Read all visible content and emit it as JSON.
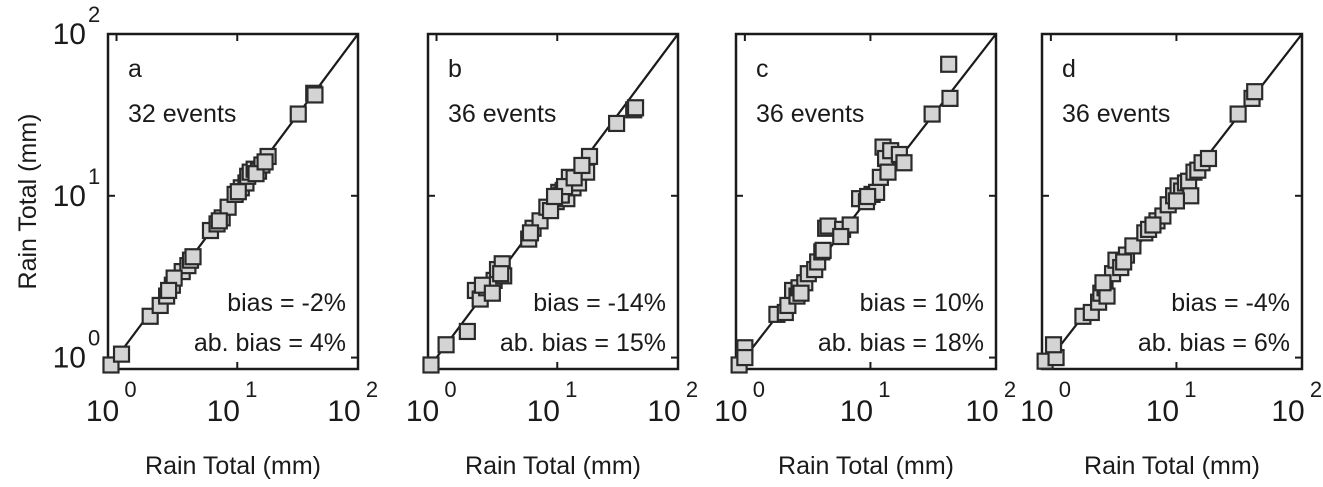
{
  "chart_data": [
    {
      "type": "scatter",
      "panel_label": "a",
      "events_text": "32 events",
      "bias_text": "bias = -2%",
      "abs_bias_text": "ab. bias = 4%",
      "xlabel": "Rain Total (mm)",
      "ylabel": "Rain Total (mm)",
      "xscale": "log",
      "yscale": "log",
      "xlim": [
        0.85,
        100
      ],
      "ylim": [
        0.85,
        100
      ],
      "reference_line": "1:1",
      "marker": "square",
      "marker_color": "#d4d4d4",
      "points": [
        [
          0.9,
          0.9
        ],
        [
          1.1,
          1.05
        ],
        [
          1.9,
          1.8
        ],
        [
          2.3,
          2.1
        ],
        [
          2.6,
          2.4
        ],
        [
          2.9,
          2.8
        ],
        [
          3.5,
          3.4
        ],
        [
          3.9,
          3.7
        ],
        [
          4.1,
          4.0
        ],
        [
          6.0,
          6.1
        ],
        [
          6.8,
          6.7
        ],
        [
          7.5,
          7.3
        ],
        [
          8.4,
          8.5
        ],
        [
          9.6,
          10.2
        ],
        [
          10.8,
          11.2
        ],
        [
          11.8,
          12.0
        ],
        [
          12.2,
          13.2
        ],
        [
          12.8,
          14.0
        ],
        [
          13.8,
          14.6
        ],
        [
          15.0,
          14.2
        ],
        [
          16.0,
          15.5
        ],
        [
          18.0,
          17.5
        ],
        [
          32.0,
          32.0
        ],
        [
          43.0,
          43.0
        ],
        [
          44.0,
          42.0
        ],
        [
          3.0,
          3.1
        ],
        [
          2.7,
          2.6
        ],
        [
          4.3,
          4.2
        ],
        [
          7.1,
          7.0
        ],
        [
          10.2,
          10.6
        ],
        [
          14.3,
          13.7
        ],
        [
          17.0,
          16.2
        ]
      ]
    },
    {
      "type": "scatter",
      "panel_label": "b",
      "events_text": "36 events",
      "bias_text": "bias = -14%",
      "abs_bias_text": "ab. bias = 15%",
      "xlabel": "Rain Total (mm)",
      "ylabel": "",
      "xscale": "log",
      "yscale": "log",
      "xlim": [
        0.85,
        100
      ],
      "ylim": [
        0.85,
        100
      ],
      "reference_line": "1:1",
      "marker": "square",
      "marker_color": "#d4d4d4",
      "points": [
        [
          0.9,
          0.9
        ],
        [
          1.2,
          1.2
        ],
        [
          1.8,
          1.45
        ],
        [
          2.1,
          2.6
        ],
        [
          2.3,
          2.3
        ],
        [
          2.6,
          2.7
        ],
        [
          3.0,
          3.0
        ],
        [
          3.2,
          3.5
        ],
        [
          3.5,
          3.8
        ],
        [
          3.6,
          3.2
        ],
        [
          5.8,
          5.4
        ],
        [
          6.3,
          6.3
        ],
        [
          7.2,
          7.0
        ],
        [
          8.2,
          8.5
        ],
        [
          9.8,
          9.2
        ],
        [
          10.3,
          10.5
        ],
        [
          11.2,
          10.8
        ],
        [
          12.0,
          9.6
        ],
        [
          12.6,
          13.0
        ],
        [
          13.5,
          11.2
        ],
        [
          15.0,
          12.0
        ],
        [
          17.5,
          14.0
        ],
        [
          18.5,
          17.5
        ],
        [
          31.0,
          28.0
        ],
        [
          43.0,
          34.0
        ],
        [
          44.5,
          35.0
        ],
        [
          2.4,
          2.8
        ],
        [
          2.9,
          2.5
        ],
        [
          3.4,
          3.3
        ],
        [
          6.0,
          5.9
        ],
        [
          8.8,
          8.1
        ],
        [
          10.8,
          10.1
        ],
        [
          11.5,
          11.4
        ],
        [
          13.8,
          12.9
        ],
        [
          16.0,
          15.4
        ],
        [
          9.5,
          9.9
        ]
      ]
    },
    {
      "type": "scatter",
      "panel_label": "c",
      "events_text": "36 events",
      "bias_text": "bias = 10%",
      "abs_bias_text": "ab. bias = 18%",
      "xlabel": "Rain Total (mm)",
      "ylabel": "",
      "xscale": "log",
      "yscale": "log",
      "xlim": [
        0.85,
        100
      ],
      "ylim": [
        0.85,
        100
      ],
      "reference_line": "1:1",
      "marker": "square",
      "marker_color": "#d4d4d4",
      "points": [
        [
          0.9,
          0.9
        ],
        [
          1.0,
          1.15
        ],
        [
          1.0,
          1.0
        ],
        [
          1.8,
          1.85
        ],
        [
          2.1,
          1.9
        ],
        [
          2.2,
          2.1
        ],
        [
          2.4,
          2.6
        ],
        [
          2.6,
          2.4
        ],
        [
          2.7,
          2.7
        ],
        [
          3.0,
          2.9
        ],
        [
          3.2,
          3.3
        ],
        [
          3.6,
          3.5
        ],
        [
          3.8,
          3.9
        ],
        [
          4.1,
          4.5
        ],
        [
          4.2,
          4.6
        ],
        [
          4.4,
          6.3
        ],
        [
          4.6,
          6.5
        ],
        [
          6.0,
          6.2
        ],
        [
          6.9,
          6.6
        ],
        [
          8.2,
          9.6
        ],
        [
          9.3,
          9.2
        ],
        [
          10.3,
          10.2
        ],
        [
          11.2,
          10.5
        ],
        [
          12.0,
          13.0
        ],
        [
          12.6,
          20.0
        ],
        [
          13.2,
          17.0
        ],
        [
          13.8,
          14.0
        ],
        [
          14.5,
          19.0
        ],
        [
          17.0,
          18.0
        ],
        [
          18.5,
          16.0
        ],
        [
          31.0,
          32.0
        ],
        [
          43.0,
          40.0
        ],
        [
          42.0,
          65.0
        ],
        [
          2.8,
          2.5
        ],
        [
          5.8,
          5.6
        ],
        [
          9.5,
          9.9
        ]
      ]
    },
    {
      "type": "scatter",
      "panel_label": "d",
      "events_text": "36 events",
      "bias_text": "bias = -4%",
      "abs_bias_text": "ab. bias = 6%",
      "xlabel": "Rain Total (mm)",
      "ylabel": "",
      "xscale": "log",
      "yscale": "log",
      "xlim": [
        0.85,
        100
      ],
      "ylim": [
        0.85,
        100
      ],
      "reference_line": "1:1",
      "marker": "square",
      "marker_color": "#d4d4d4",
      "points": [
        [
          0.9,
          0.95
        ],
        [
          1.1,
          1.0
        ],
        [
          1.05,
          1.2
        ],
        [
          1.8,
          1.8
        ],
        [
          2.1,
          1.9
        ],
        [
          2.4,
          2.2
        ],
        [
          2.5,
          2.5
        ],
        [
          2.7,
          2.7
        ],
        [
          2.8,
          2.4
        ],
        [
          3.1,
          3.3
        ],
        [
          3.3,
          4.0
        ],
        [
          3.6,
          3.6
        ],
        [
          4.0,
          4.3
        ],
        [
          4.5,
          4.9
        ],
        [
          5.6,
          5.9
        ],
        [
          6.0,
          6.2
        ],
        [
          7.0,
          7.0
        ],
        [
          7.8,
          7.5
        ],
        [
          8.6,
          8.8
        ],
        [
          9.5,
          10.0
        ],
        [
          10.3,
          11.5
        ],
        [
          11.0,
          10.7
        ],
        [
          11.8,
          12.0
        ],
        [
          12.5,
          12.3
        ],
        [
          13.0,
          10.0
        ],
        [
          13.8,
          14.0
        ],
        [
          14.8,
          14.4
        ],
        [
          16.0,
          16.0
        ],
        [
          18.0,
          17.0
        ],
        [
          31.0,
          32.0
        ],
        [
          40.0,
          40.0
        ],
        [
          42.0,
          44.0
        ],
        [
          2.6,
          2.9
        ],
        [
          3.8,
          3.9
        ],
        [
          6.5,
          6.6
        ],
        [
          10.0,
          9.3
        ]
      ]
    }
  ]
}
